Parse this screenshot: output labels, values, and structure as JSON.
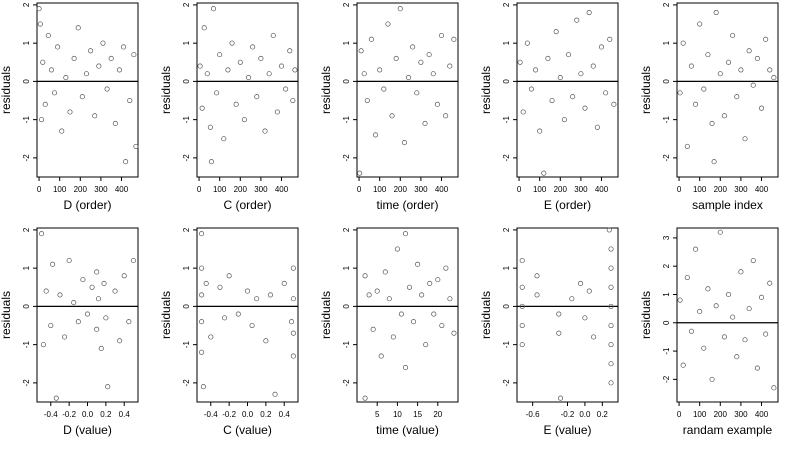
{
  "chart_data": [
    {
      "type": "scatter",
      "xlabel": "D (order)",
      "ylabel": "residuals",
      "xlim": [
        -10,
        480
      ],
      "ylim": [
        -2.5,
        2.05
      ],
      "xticks": [
        0,
        100,
        200,
        300,
        400
      ],
      "xtick_labels": [
        "0",
        "100",
        "200",
        "300",
        "400"
      ],
      "yticks": [
        -2,
        -1,
        0,
        1,
        2
      ],
      "ytick_labels": [
        "-2",
        "-1",
        "0",
        "1",
        "2"
      ],
      "ref_line_y": 0,
      "points": [
        [
          0,
          1.9
        ],
        [
          6,
          1.5
        ],
        [
          12,
          -1.0
        ],
        [
          18,
          0.5
        ],
        [
          30,
          -0.6
        ],
        [
          45,
          1.2
        ],
        [
          60,
          0.3
        ],
        [
          75,
          -0.3
        ],
        [
          90,
          0.9
        ],
        [
          110,
          -1.3
        ],
        [
          130,
          0.1
        ],
        [
          150,
          -0.8
        ],
        [
          170,
          0.6
        ],
        [
          190,
          1.4
        ],
        [
          210,
          -0.4
        ],
        [
          230,
          0.2
        ],
        [
          250,
          0.8
        ],
        [
          270,
          -0.9
        ],
        [
          290,
          0.4
        ],
        [
          310,
          1.0
        ],
        [
          330,
          -0.2
        ],
        [
          350,
          0.6
        ],
        [
          370,
          -1.1
        ],
        [
          390,
          0.3
        ],
        [
          410,
          0.9
        ],
        [
          420,
          -2.1
        ],
        [
          440,
          -0.5
        ],
        [
          460,
          0.7
        ],
        [
          470,
          -1.7
        ]
      ]
    },
    {
      "type": "scatter",
      "xlabel": "C (order)",
      "ylabel": "residuals",
      "xlim": [
        -10,
        480
      ],
      "ylim": [
        -2.5,
        2.05
      ],
      "xticks": [
        0,
        100,
        200,
        300,
        400
      ],
      "xtick_labels": [
        "0",
        "100",
        "200",
        "300",
        "400"
      ],
      "yticks": [
        -2,
        -1,
        0,
        1,
        2
      ],
      "ytick_labels": [
        "-2",
        "-1",
        "0",
        "1",
        "2"
      ],
      "ref_line_y": 0,
      "points": [
        [
          5,
          0.4
        ],
        [
          15,
          -0.7
        ],
        [
          25,
          1.4
        ],
        [
          40,
          0.2
        ],
        [
          55,
          -1.2
        ],
        [
          60,
          -2.1
        ],
        [
          70,
          1.9
        ],
        [
          85,
          -0.3
        ],
        [
          100,
          0.7
        ],
        [
          120,
          -1.5
        ],
        [
          140,
          0.3
        ],
        [
          160,
          1.0
        ],
        [
          180,
          -0.6
        ],
        [
          200,
          0.5
        ],
        [
          220,
          -1.0
        ],
        [
          240,
          0.1
        ],
        [
          260,
          0.9
        ],
        [
          280,
          -0.4
        ],
        [
          300,
          0.6
        ],
        [
          320,
          -1.3
        ],
        [
          340,
          0.2
        ],
        [
          360,
          1.2
        ],
        [
          380,
          -0.8
        ],
        [
          400,
          0.4
        ],
        [
          420,
          -0.2
        ],
        [
          440,
          0.8
        ],
        [
          455,
          -0.5
        ],
        [
          465,
          0.3
        ]
      ]
    },
    {
      "type": "scatter",
      "xlabel": "time (order)",
      "ylabel": "residuals",
      "xlim": [
        -10,
        480
      ],
      "ylim": [
        -2.5,
        2.05
      ],
      "xticks": [
        0,
        100,
        200,
        300,
        400
      ],
      "xtick_labels": [
        "0",
        "100",
        "200",
        "300",
        "400"
      ],
      "yticks": [
        -2,
        -1,
        0,
        1,
        2
      ],
      "ytick_labels": [
        "-2",
        "-1",
        "0",
        "1",
        "2"
      ],
      "ref_line_y": 0,
      "points": [
        [
          3,
          -2.4
        ],
        [
          10,
          0.8
        ],
        [
          25,
          0.2
        ],
        [
          40,
          -0.5
        ],
        [
          60,
          1.1
        ],
        [
          80,
          -1.4
        ],
        [
          100,
          0.3
        ],
        [
          120,
          -0.2
        ],
        [
          140,
          1.5
        ],
        [
          160,
          -0.9
        ],
        [
          180,
          0.6
        ],
        [
          200,
          1.9
        ],
        [
          220,
          -1.6
        ],
        [
          240,
          0.1
        ],
        [
          260,
          0.9
        ],
        [
          280,
          -0.3
        ],
        [
          300,
          0.5
        ],
        [
          320,
          -1.1
        ],
        [
          340,
          0.7
        ],
        [
          360,
          0.2
        ],
        [
          380,
          -0.6
        ],
        [
          400,
          1.2
        ],
        [
          420,
          -0.9
        ],
        [
          440,
          0.4
        ],
        [
          460,
          1.1
        ]
      ]
    },
    {
      "type": "scatter",
      "xlabel": "E (order)",
      "ylabel": "residuals",
      "xlim": [
        -10,
        480
      ],
      "ylim": [
        -2.5,
        2.05
      ],
      "xticks": [
        0,
        100,
        200,
        300,
        400
      ],
      "xtick_labels": [
        "0",
        "100",
        "200",
        "300",
        "400"
      ],
      "yticks": [
        -2,
        -1,
        0,
        1,
        2
      ],
      "ytick_labels": [
        "-2",
        "-1",
        "0",
        "1",
        "2"
      ],
      "ref_line_y": 0,
      "points": [
        [
          5,
          0.5
        ],
        [
          20,
          -0.8
        ],
        [
          40,
          1.0
        ],
        [
          60,
          -0.2
        ],
        [
          80,
          0.3
        ],
        [
          100,
          -1.3
        ],
        [
          120,
          -2.4
        ],
        [
          140,
          0.6
        ],
        [
          160,
          -0.5
        ],
        [
          180,
          1.3
        ],
        [
          200,
          0.1
        ],
        [
          220,
          -1.0
        ],
        [
          240,
          0.7
        ],
        [
          260,
          -0.4
        ],
        [
          280,
          1.6
        ],
        [
          300,
          0.2
        ],
        [
          320,
          -0.7
        ],
        [
          340,
          1.8
        ],
        [
          360,
          0.4
        ],
        [
          380,
          -1.2
        ],
        [
          400,
          0.9
        ],
        [
          420,
          -0.3
        ],
        [
          440,
          1.1
        ],
        [
          460,
          -0.6
        ]
      ]
    },
    {
      "type": "scatter",
      "xlabel": "sample index",
      "ylabel": "residuals",
      "xlim": [
        -10,
        480
      ],
      "ylim": [
        -2.5,
        2.05
      ],
      "xticks": [
        0,
        100,
        200,
        300,
        400
      ],
      "xtick_labels": [
        "0",
        "100",
        "200",
        "300",
        "400"
      ],
      "yticks": [
        -2,
        -1,
        0,
        1,
        2
      ],
      "ytick_labels": [
        "-2",
        "-1",
        "0",
        "1",
        "2"
      ],
      "ref_line_y": 0,
      "points": [
        [
          5,
          -0.3
        ],
        [
          20,
          1.0
        ],
        [
          40,
          -1.7
        ],
        [
          60,
          0.4
        ],
        [
          80,
          -0.6
        ],
        [
          100,
          1.5
        ],
        [
          120,
          -0.2
        ],
        [
          140,
          0.7
        ],
        [
          160,
          -1.1
        ],
        [
          170,
          -2.1
        ],
        [
          180,
          1.8
        ],
        [
          200,
          0.2
        ],
        [
          220,
          -0.9
        ],
        [
          240,
          0.5
        ],
        [
          260,
          1.2
        ],
        [
          280,
          -0.4
        ],
        [
          300,
          0.3
        ],
        [
          320,
          -1.5
        ],
        [
          340,
          0.8
        ],
        [
          360,
          -0.1
        ],
        [
          380,
          0.6
        ],
        [
          400,
          -0.7
        ],
        [
          420,
          1.1
        ],
        [
          440,
          0.3
        ],
        [
          460,
          0.1
        ]
      ]
    },
    {
      "type": "scatter",
      "xlabel": "D (value)",
      "ylabel": "residuals",
      "xlim": [
        -0.55,
        0.55
      ],
      "ylim": [
        -2.5,
        2.05
      ],
      "xticks": [
        -0.4,
        -0.2,
        0,
        0.2,
        0.4
      ],
      "xtick_labels": [
        "-0.4",
        "-0.2",
        "0.0",
        "0.2",
        "0.4"
      ],
      "yticks": [
        -2,
        -1,
        0,
        1,
        2
      ],
      "ytick_labels": [
        "-2",
        "-1",
        "0",
        "1",
        "2"
      ],
      "ref_line_y": 0,
      "points": [
        [
          -0.5,
          1.9
        ],
        [
          -0.48,
          -1.0
        ],
        [
          -0.45,
          0.4
        ],
        [
          -0.4,
          -0.5
        ],
        [
          -0.38,
          1.1
        ],
        [
          -0.34,
          -2.4
        ],
        [
          -0.3,
          0.3
        ],
        [
          -0.25,
          -0.8
        ],
        [
          -0.2,
          1.2
        ],
        [
          -0.15,
          0.1
        ],
        [
          -0.1,
          -0.4
        ],
        [
          -0.05,
          0.7
        ],
        [
          0.0,
          -0.2
        ],
        [
          0.05,
          0.5
        ],
        [
          0.1,
          -0.6
        ],
        [
          0.1,
          0.9
        ],
        [
          0.12,
          0.2
        ],
        [
          0.15,
          -1.1
        ],
        [
          0.18,
          0.6
        ],
        [
          0.2,
          -0.3
        ],
        [
          0.22,
          -2.1
        ],
        [
          0.3,
          0.4
        ],
        [
          0.35,
          -0.9
        ],
        [
          0.4,
          0.8
        ],
        [
          0.45,
          -0.4
        ],
        [
          0.5,
          1.2
        ]
      ]
    },
    {
      "type": "scatter",
      "xlabel": "C (value)",
      "ylabel": "residuals",
      "xlim": [
        -0.55,
        0.55
      ],
      "ylim": [
        -2.5,
        2.05
      ],
      "xticks": [
        -0.4,
        -0.2,
        0,
        0.2,
        0.4
      ],
      "xtick_labels": [
        "-0.4",
        "-0.2",
        "0.0",
        "0.2",
        "0.4"
      ],
      "yticks": [
        -2,
        -1,
        0,
        1,
        2
      ],
      "ytick_labels": [
        "-2",
        "-1",
        "0",
        "1",
        "2"
      ],
      "ref_line_y": 0,
      "points": [
        [
          -0.5,
          1.9
        ],
        [
          -0.5,
          1.0
        ],
        [
          -0.5,
          0.3
        ],
        [
          -0.5,
          -0.4
        ],
        [
          -0.5,
          -1.2
        ],
        [
          -0.48,
          -2.1
        ],
        [
          -0.45,
          0.6
        ],
        [
          -0.4,
          -0.8
        ],
        [
          -0.3,
          0.5
        ],
        [
          -0.25,
          -0.3
        ],
        [
          -0.2,
          0.8
        ],
        [
          -0.1,
          -0.2
        ],
        [
          0.0,
          0.4
        ],
        [
          0.05,
          -0.5
        ],
        [
          0.1,
          0.2
        ],
        [
          0.2,
          -0.9
        ],
        [
          0.25,
          0.3
        ],
        [
          0.3,
          -2.3
        ],
        [
          0.4,
          0.6
        ],
        [
          0.48,
          -0.4
        ],
        [
          0.5,
          1.0
        ],
        [
          0.5,
          0.2
        ],
        [
          0.5,
          -0.7
        ],
        [
          0.5,
          -1.3
        ]
      ]
    },
    {
      "type": "scatter",
      "xlabel": "time (value)",
      "ylabel": "residuals",
      "xlim": [
        0,
        25
      ],
      "ylim": [
        -2.5,
        2.05
      ],
      "xticks": [
        5,
        10,
        15,
        20
      ],
      "xtick_labels": [
        "5",
        "10",
        "15",
        "20"
      ],
      "yticks": [
        -2,
        -1,
        0,
        1,
        2
      ],
      "ytick_labels": [
        "-2",
        "-1",
        "0",
        "1",
        "2"
      ],
      "ref_line_y": 0,
      "points": [
        [
          2,
          0.8
        ],
        [
          2,
          -2.4
        ],
        [
          3,
          0.3
        ],
        [
          4,
          -0.6
        ],
        [
          5,
          0.4
        ],
        [
          6,
          -1.3
        ],
        [
          7,
          0.9
        ],
        [
          8,
          0.2
        ],
        [
          9,
          -0.8
        ],
        [
          10,
          1.5
        ],
        [
          11,
          -0.2
        ],
        [
          12,
          1.9
        ],
        [
          12,
          -1.6
        ],
        [
          13,
          0.5
        ],
        [
          14,
          -0.4
        ],
        [
          15,
          1.1
        ],
        [
          16,
          0.3
        ],
        [
          17,
          -1.0
        ],
        [
          18,
          0.6
        ],
        [
          19,
          -0.2
        ],
        [
          20,
          0.7
        ],
        [
          21,
          -0.5
        ],
        [
          22,
          1.0
        ],
        [
          23,
          0.2
        ],
        [
          24,
          -0.7
        ]
      ]
    },
    {
      "type": "scatter",
      "xlabel": "E (value)",
      "ylabel": "residuals",
      "xlim": [
        -0.78,
        0.38
      ],
      "ylim": [
        -2.5,
        2.05
      ],
      "xticks": [
        -0.6,
        -0.2,
        0,
        0.2
      ],
      "xtick_labels": [
        "-0.6",
        "-0.2",
        "0.0",
        "0.2"
      ],
      "yticks": [
        -2,
        -1,
        0,
        1,
        2
      ],
      "ytick_labels": [
        "-2",
        "-1",
        "0",
        "1",
        "2"
      ],
      "ref_line_y": 0,
      "points": [
        [
          -0.72,
          1.2
        ],
        [
          -0.72,
          0.5
        ],
        [
          -0.72,
          0.0
        ],
        [
          -0.72,
          -0.5
        ],
        [
          -0.72,
          -1.0
        ],
        [
          -0.55,
          0.8
        ],
        [
          -0.55,
          0.3
        ],
        [
          -0.3,
          -0.2
        ],
        [
          -0.3,
          -0.7
        ],
        [
          -0.28,
          -2.4
        ],
        [
          -0.15,
          0.2
        ],
        [
          -0.05,
          0.6
        ],
        [
          0.0,
          -0.3
        ],
        [
          0.05,
          0.4
        ],
        [
          0.1,
          -0.8
        ],
        [
          0.28,
          2.0
        ],
        [
          0.3,
          1.5
        ],
        [
          0.3,
          1.0
        ],
        [
          0.3,
          0.5
        ],
        [
          0.3,
          0.0
        ],
        [
          0.3,
          -0.5
        ],
        [
          0.3,
          -1.0
        ],
        [
          0.3,
          -1.5
        ],
        [
          0.3,
          -2.0
        ]
      ]
    },
    {
      "type": "scatter",
      "xlabel": "randam example",
      "ylabel": "residuals",
      "xlim": [
        -10,
        480
      ],
      "ylim": [
        -2.8,
        3.35
      ],
      "xticks": [
        0,
        100,
        200,
        300,
        400
      ],
      "xtick_labels": [
        "0",
        "100",
        "200",
        "300",
        "400"
      ],
      "yticks": [
        -2,
        -1,
        0,
        1,
        2,
        3
      ],
      "ytick_labels": [
        "-2",
        "-1",
        "0",
        "1",
        "2",
        "3"
      ],
      "ref_line_y": 0,
      "points": [
        [
          5,
          0.8
        ],
        [
          20,
          -1.5
        ],
        [
          40,
          1.6
        ],
        [
          60,
          -0.3
        ],
        [
          80,
          2.6
        ],
        [
          100,
          0.4
        ],
        [
          120,
          -0.9
        ],
        [
          140,
          1.2
        ],
        [
          160,
          -2.0
        ],
        [
          180,
          0.6
        ],
        [
          200,
          3.2
        ],
        [
          220,
          -0.5
        ],
        [
          240,
          1.0
        ],
        [
          260,
          0.2
        ],
        [
          280,
          -1.2
        ],
        [
          300,
          1.8
        ],
        [
          320,
          -0.6
        ],
        [
          340,
          0.5
        ],
        [
          360,
          2.2
        ],
        [
          380,
          -1.6
        ],
        [
          400,
          0.9
        ],
        [
          420,
          -0.4
        ],
        [
          440,
          1.4
        ],
        [
          460,
          -2.3
        ]
      ]
    }
  ]
}
